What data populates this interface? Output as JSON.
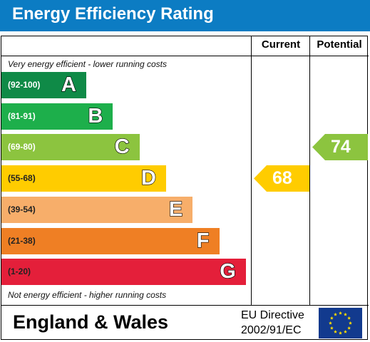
{
  "title": "Energy Efficiency Rating",
  "columns": {
    "current": "Current",
    "potential": "Potential"
  },
  "top_note": "Very energy efficient - lower running costs",
  "bottom_note": "Not energy efficient - higher running costs",
  "footer": {
    "region": "England & Wales",
    "directive_line1": "EU Directive",
    "directive_line2": "2002/91/EC"
  },
  "chart_data": {
    "type": "bar",
    "categories": [
      "A",
      "B",
      "C",
      "D",
      "E",
      "F",
      "G"
    ],
    "ranges": [
      "(92-100)",
      "(81-91)",
      "(69-80)",
      "(55-68)",
      "(39-54)",
      "(21-38)",
      "(1-20)"
    ],
    "colors": [
      "#0f8a47",
      "#1daf4b",
      "#8cc43f",
      "#ffcc00",
      "#f7ae6a",
      "#ef7f24",
      "#e41f3a"
    ],
    "current": {
      "value": 68,
      "band": "D",
      "color": "#ffcc00"
    },
    "potential": {
      "value": 74,
      "band": "C",
      "color": "#8cc43f"
    }
  }
}
